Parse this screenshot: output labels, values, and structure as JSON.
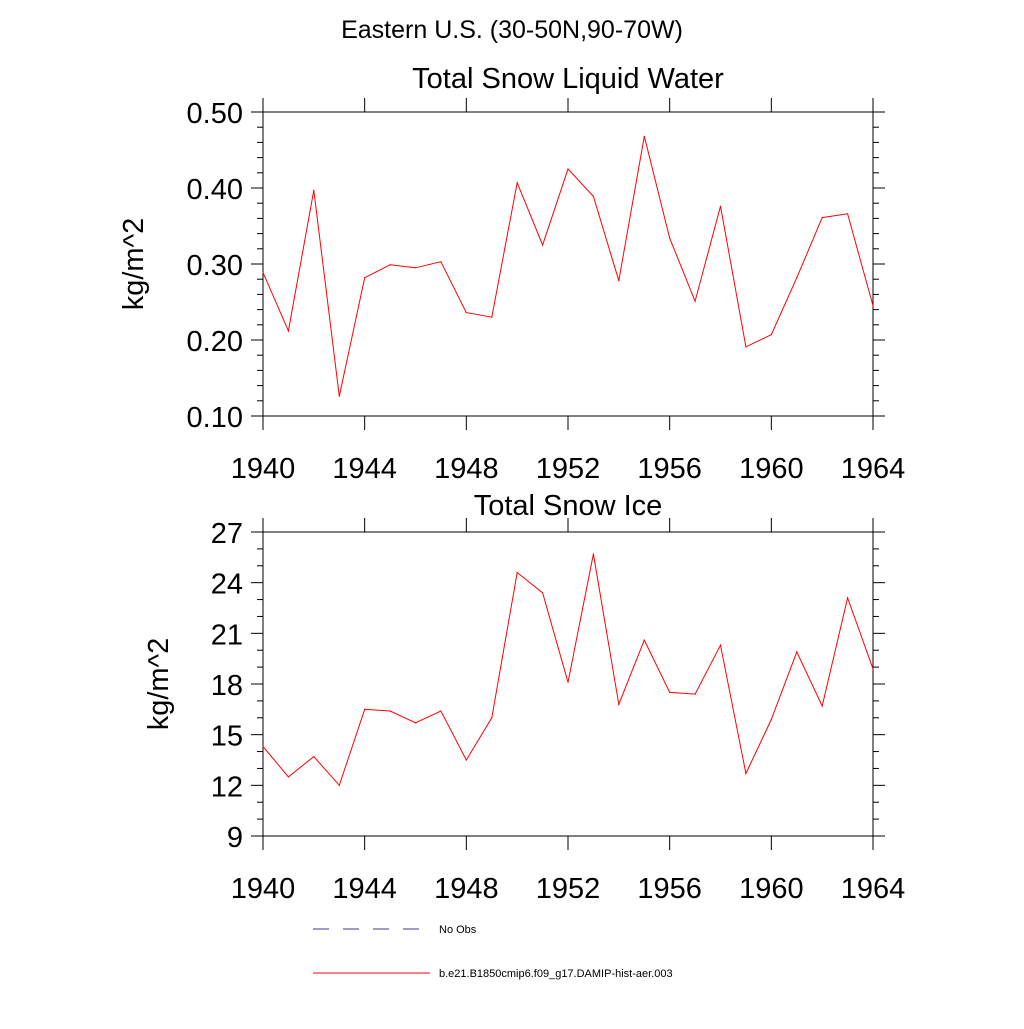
{
  "figure": {
    "title": "Eastern U.S. (30-50N,90-70W)"
  },
  "chart_data": [
    {
      "type": "line",
      "title": "Total Snow Liquid Water",
      "xlabel": "",
      "ylabel": "kg/m^2",
      "xlim": [
        1940,
        1964
      ],
      "ylim": [
        0.1,
        0.5
      ],
      "x_ticks": [
        "1940",
        "1944",
        "1948",
        "1952",
        "1956",
        "1960",
        "1964"
      ],
      "y_ticks": [
        "0.10",
        "0.20",
        "0.30",
        "0.40",
        "0.50"
      ],
      "grid": false,
      "series": [
        {
          "name": "b.e21.B1850cmip6.f09_g17.DAMIP-hist-aer.003",
          "color": "#ff0000",
          "x": [
            1940,
            1941,
            1942,
            1943,
            1944,
            1945,
            1946,
            1947,
            1948,
            1949,
            1950,
            1951,
            1952,
            1953,
            1954,
            1955,
            1956,
            1957,
            1958,
            1959,
            1960,
            1961,
            1962,
            1963,
            1964
          ],
          "values": [
            0.289,
            0.212,
            0.397,
            0.126,
            0.282,
            0.299,
            0.295,
            0.303,
            0.236,
            0.23,
            0.407,
            0.325,
            0.425,
            0.389,
            0.278,
            0.468,
            0.334,
            0.251,
            0.376,
            0.191,
            0.207,
            0.282,
            0.361,
            0.366,
            0.245
          ]
        }
      ]
    },
    {
      "type": "line",
      "title": "Total Snow Ice",
      "xlabel": "",
      "ylabel": "kg/m^2",
      "xlim": [
        1940,
        1964
      ],
      "ylim": [
        9,
        27
      ],
      "x_ticks": [
        "1940",
        "1944",
        "1948",
        "1952",
        "1956",
        "1960",
        "1964"
      ],
      "y_ticks": [
        "9",
        "12",
        "15",
        "18",
        "21",
        "24",
        "27"
      ],
      "grid": false,
      "series": [
        {
          "name": "b.e21.B1850cmip6.f09_g17.DAMIP-hist-aer.003",
          "color": "#ff0000",
          "x": [
            1940,
            1941,
            1942,
            1943,
            1944,
            1945,
            1946,
            1947,
            1948,
            1949,
            1950,
            1951,
            1952,
            1953,
            1954,
            1955,
            1956,
            1957,
            1958,
            1959,
            1960,
            1961,
            1962,
            1963,
            1964
          ],
          "values": [
            14.3,
            12.5,
            13.7,
            12.0,
            16.5,
            16.4,
            15.7,
            16.4,
            13.5,
            16.0,
            24.6,
            23.4,
            18.1,
            25.7,
            16.8,
            20.6,
            17.5,
            17.4,
            20.3,
            12.7,
            15.9,
            19.9,
            16.7,
            23.1,
            18.9
          ]
        }
      ]
    }
  ],
  "legend": {
    "placement": "bottom",
    "entries": [
      {
        "label": "No Obs",
        "color": "#3a3a8c",
        "style": "dashed"
      },
      {
        "label": "b.e21.B1850cmip6.f09_g17.DAMIP-hist-aer.003",
        "color": "#ff0000",
        "style": "solid"
      }
    ]
  }
}
